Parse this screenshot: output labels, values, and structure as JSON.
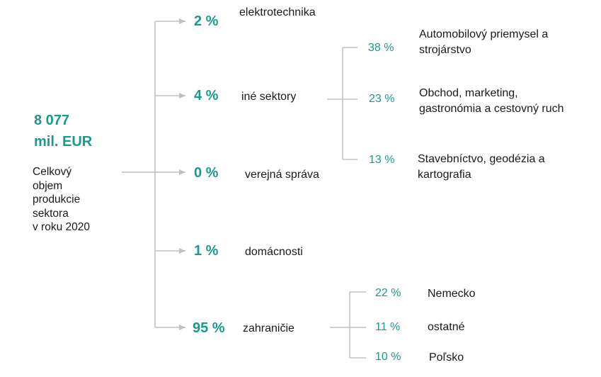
{
  "summary": {
    "total_value": "8 077",
    "total_unit": "mil. EUR",
    "description": [
      "Celkový",
      "objem",
      "produkcie",
      "sektora",
      "v roku 2020"
    ]
  },
  "branches": [
    {
      "pct": "2 %",
      "label": "elektrotechnika"
    },
    {
      "pct": "4 %",
      "label": "iné sektory"
    },
    {
      "pct": "0 %",
      "label": "verejná správa"
    },
    {
      "pct": "1 %",
      "label": "domácnosti"
    },
    {
      "pct": "95 %",
      "label": "zahraničie"
    }
  ],
  "other_sectors_breakdown": [
    {
      "pct": "38 %",
      "label_lines": [
        "Automobilový priemysel a",
        "strojárstvo"
      ]
    },
    {
      "pct": "23 %",
      "label_lines": [
        "Obchod, marketing,",
        "gastronómia a cestovný ruch"
      ]
    },
    {
      "pct": "13 %",
      "label_lines": [
        "Stavebníctvo, geodézia a",
        "kartografia"
      ]
    }
  ],
  "foreign_breakdown": [
    {
      "pct": "22 %",
      "label": "Nemecko"
    },
    {
      "pct": "11 %",
      "label": "ostatné"
    },
    {
      "pct": "10 %",
      "label": "Poľsko"
    }
  ],
  "colors": {
    "accent": "#1a9a8c",
    "connector": "#bfbfbf",
    "text": "#1a1a1a"
  }
}
